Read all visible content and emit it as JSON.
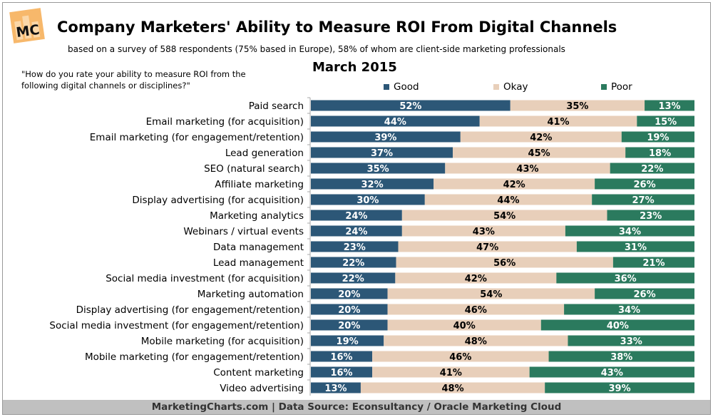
{
  "logo": {
    "text": "MC"
  },
  "title": "Company Marketers' Ability to Measure ROI From Digital Channels",
  "subtitle": "based on a survey of 588 respondents (75% based in Europe), 58% of whom are client-side marketing professionals",
  "question": "\"How do you rate your ability to measure ROI from the following digital channels or disciplines?\"",
  "footer": "MarketingCharts.com | Data Source: Econsultancy / Oracle Marketing Cloud",
  "chart_data": {
    "type": "bar",
    "orientation": "horizontal",
    "stacked": "100%",
    "title": "March 2015",
    "legend_position": "top",
    "grid": false,
    "xlim": [
      0,
      100
    ],
    "categories": [
      "Paid search",
      "Email marketing (for acquisition)",
      "Email marketing (for engagement/retention)",
      "Lead generation",
      "SEO (natural search)",
      "Affiliate marketing",
      "Display advertising (for acquisition)",
      "Marketing analytics",
      "Webinars / virtual events",
      "Data management",
      "Lead management",
      "Social media investment (for acquisition)",
      "Marketing automation",
      "Display advertising (for engagement/retention)",
      "Social media investment (for engagement/retention)",
      "Mobile marketing (for acquisition)",
      "Mobile marketing (for engagement/retention)",
      "Content marketing",
      "Video advertising"
    ],
    "series": [
      {
        "name": "Good",
        "color": "#2c5777",
        "values": [
          52,
          44,
          39,
          37,
          35,
          32,
          30,
          24,
          24,
          23,
          22,
          22,
          20,
          20,
          20,
          19,
          16,
          16,
          13
        ]
      },
      {
        "name": "Okay",
        "color": "#e8cfba",
        "values": [
          35,
          41,
          42,
          45,
          43,
          42,
          44,
          54,
          43,
          47,
          56,
          42,
          54,
          46,
          40,
          48,
          46,
          41,
          48
        ]
      },
      {
        "name": "Poor",
        "color": "#2b7a5e",
        "values": [
          13,
          15,
          19,
          18,
          22,
          26,
          27,
          23,
          34,
          31,
          21,
          36,
          26,
          34,
          40,
          33,
          38,
          43,
          39
        ]
      }
    ]
  }
}
